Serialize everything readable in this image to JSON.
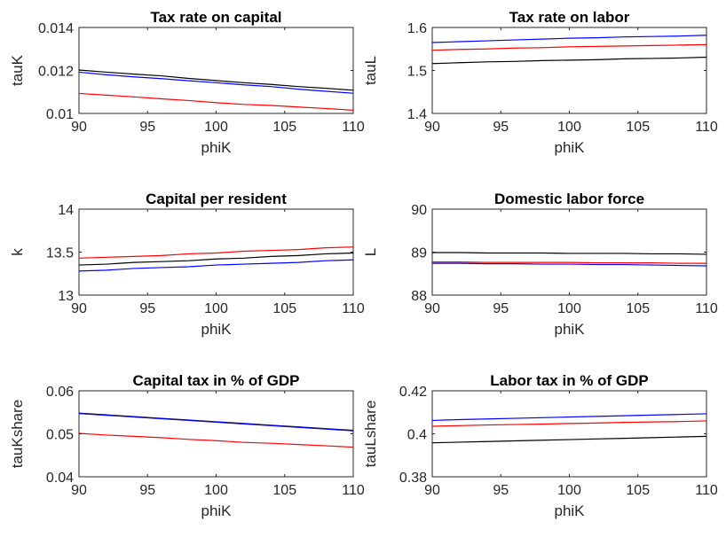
{
  "figure": {
    "colors": {
      "black": "#000000",
      "blue": "#0000ff",
      "red": "#ff0000",
      "axis": "#262626"
    }
  },
  "chart_data": [
    {
      "type": "line",
      "title": "Tax rate on capital",
      "xlabel": "phiK",
      "ylabel": "tauK",
      "xlim": [
        90,
        110
      ],
      "ylim": [
        0.01,
        0.014
      ],
      "xticks": [
        90,
        95,
        100,
        105,
        110
      ],
      "yticks": [
        0.01,
        0.012,
        0.014
      ],
      "xtick_labels": [
        "90",
        "95",
        "100",
        "105",
        "110"
      ],
      "ytick_labels": [
        "0.01",
        "0.012",
        "0.014"
      ],
      "grid": false,
      "x": [
        90,
        92,
        94,
        96,
        98,
        100,
        102,
        104,
        106,
        108,
        110
      ],
      "series": [
        {
          "color": "#000000",
          "values": [
            0.01202,
            0.01192,
            0.01183,
            0.01175,
            0.01163,
            0.01153,
            0.01143,
            0.01135,
            0.01125,
            0.01117,
            0.01108
          ]
        },
        {
          "color": "#0000ff",
          "values": [
            0.01192,
            0.0118,
            0.0117,
            0.01162,
            0.01152,
            0.01143,
            0.01133,
            0.01125,
            0.01113,
            0.01103,
            0.01094
          ]
        },
        {
          "color": "#ff0000",
          "values": [
            0.01093,
            0.01085,
            0.01077,
            0.01068,
            0.0106,
            0.0105,
            0.01042,
            0.01037,
            0.0103,
            0.01023,
            0.01015
          ]
        }
      ]
    },
    {
      "type": "line",
      "title": "Tax rate on labor",
      "xlabel": "phiK",
      "ylabel": "tauL",
      "xlim": [
        90,
        110
      ],
      "ylim": [
        1.4,
        1.6
      ],
      "xticks": [
        90,
        95,
        100,
        105,
        110
      ],
      "yticks": [
        1.4,
        1.5,
        1.6
      ],
      "xtick_labels": [
        "90",
        "95",
        "100",
        "105",
        "110"
      ],
      "ytick_labels": [
        "1.4",
        "1.5",
        "1.6"
      ],
      "grid": false,
      "x": [
        90,
        92,
        94,
        96,
        98,
        100,
        102,
        104,
        106,
        108,
        110
      ],
      "series": [
        {
          "color": "#0000ff",
          "values": [
            1.565,
            1.567,
            1.569,
            1.571,
            1.573,
            1.575,
            1.576,
            1.578,
            1.579,
            1.58,
            1.582
          ]
        },
        {
          "color": "#ff0000",
          "values": [
            1.547,
            1.549,
            1.55,
            1.552,
            1.553,
            1.555,
            1.556,
            1.557,
            1.558,
            1.559,
            1.56
          ]
        },
        {
          "color": "#000000",
          "values": [
            1.516,
            1.518,
            1.52,
            1.521,
            1.523,
            1.524,
            1.525,
            1.527,
            1.528,
            1.529,
            1.531
          ]
        }
      ]
    },
    {
      "type": "line",
      "title": "Capital per resident",
      "xlabel": "phiK",
      "ylabel": "k",
      "xlim": [
        90,
        110
      ],
      "ylim": [
        13,
        14
      ],
      "xticks": [
        90,
        95,
        100,
        105,
        110
      ],
      "yticks": [
        13,
        13.5,
        14
      ],
      "xtick_labels": [
        "90",
        "95",
        "100",
        "105",
        "110"
      ],
      "ytick_labels": [
        "13",
        "13.5",
        "14"
      ],
      "grid": false,
      "x": [
        90,
        92,
        94,
        96,
        98,
        100,
        102,
        104,
        106,
        108,
        110
      ],
      "series": [
        {
          "color": "#ff0000",
          "values": [
            13.43,
            13.44,
            13.45,
            13.46,
            13.48,
            13.49,
            13.51,
            13.52,
            13.53,
            13.55,
            13.56
          ]
        },
        {
          "color": "#000000",
          "values": [
            13.35,
            13.36,
            13.38,
            13.39,
            13.4,
            13.42,
            13.43,
            13.45,
            13.46,
            13.48,
            13.49
          ]
        },
        {
          "color": "#0000ff",
          "values": [
            13.28,
            13.29,
            13.31,
            13.32,
            13.33,
            13.35,
            13.36,
            13.37,
            13.38,
            13.4,
            13.41
          ]
        }
      ]
    },
    {
      "type": "line",
      "title": "Domestic labor force",
      "xlabel": "phiK",
      "ylabel": "L",
      "xlim": [
        90,
        110
      ],
      "ylim": [
        88,
        90
      ],
      "xticks": [
        90,
        95,
        100,
        105,
        110
      ],
      "yticks": [
        88,
        89,
        90
      ],
      "xtick_labels": [
        "90",
        "95",
        "100",
        "105",
        "110"
      ],
      "ytick_labels": [
        "88",
        "89",
        "90"
      ],
      "grid": false,
      "x": [
        90,
        92,
        94,
        96,
        98,
        100,
        102,
        104,
        106,
        108,
        110
      ],
      "series": [
        {
          "color": "#000000",
          "values": [
            88.99,
            88.99,
            88.98,
            88.98,
            88.98,
            88.97,
            88.97,
            88.97,
            88.96,
            88.96,
            88.95
          ]
        },
        {
          "color": "#ff0000",
          "values": [
            88.77,
            88.77,
            88.76,
            88.76,
            88.76,
            88.76,
            88.75,
            88.75,
            88.75,
            88.74,
            88.74
          ]
        },
        {
          "color": "#0000ff",
          "values": [
            88.74,
            88.74,
            88.73,
            88.73,
            88.72,
            88.72,
            88.71,
            88.71,
            88.7,
            88.69,
            88.68
          ]
        }
      ]
    },
    {
      "type": "line",
      "title": "Capital tax in % of GDP",
      "xlabel": "phiK",
      "ylabel": "tauKshare",
      "xlim": [
        90,
        110
      ],
      "ylim": [
        0.04,
        0.06
      ],
      "xticks": [
        90,
        95,
        100,
        105,
        110
      ],
      "yticks": [
        0.04,
        0.05,
        0.06
      ],
      "xtick_labels": [
        "90",
        "95",
        "100",
        "105",
        "110"
      ],
      "ytick_labels": [
        "0.04",
        "0.05",
        "0.06"
      ],
      "grid": false,
      "x": [
        90,
        92,
        94,
        96,
        98,
        100,
        102,
        104,
        106,
        108,
        110
      ],
      "series": [
        {
          "color": "#000000",
          "values": [
            0.0548,
            0.0544,
            0.054,
            0.0536,
            0.0532,
            0.0528,
            0.0524,
            0.052,
            0.0516,
            0.0512,
            0.0508
          ]
        },
        {
          "color": "#0000ff",
          "values": [
            0.0547,
            0.0543,
            0.0539,
            0.0535,
            0.0531,
            0.0527,
            0.0523,
            0.0519,
            0.0515,
            0.0511,
            0.0507
          ]
        },
        {
          "color": "#ff0000",
          "values": [
            0.0501,
            0.0497,
            0.0494,
            0.0491,
            0.0487,
            0.0484,
            0.048,
            0.0478,
            0.0475,
            0.0472,
            0.0469
          ]
        }
      ]
    },
    {
      "type": "line",
      "title": "Labor tax in % of GDP",
      "xlabel": "phiK",
      "ylabel": "tauLshare",
      "xlim": [
        90,
        110
      ],
      "ylim": [
        0.38,
        0.42
      ],
      "xticks": [
        90,
        95,
        100,
        105,
        110
      ],
      "yticks": [
        0.38,
        0.4,
        0.42
      ],
      "xtick_labels": [
        "90",
        "95",
        "100",
        "105",
        "110"
      ],
      "ytick_labels": [
        "0.38",
        "0.4",
        "0.42"
      ],
      "grid": false,
      "x": [
        90,
        92,
        94,
        96,
        98,
        100,
        102,
        104,
        106,
        108,
        110
      ],
      "series": [
        {
          "color": "#0000ff",
          "values": [
            0.4062,
            0.4066,
            0.4069,
            0.4072,
            0.4075,
            0.4078,
            0.4081,
            0.4084,
            0.4087,
            0.409,
            0.4093
          ]
        },
        {
          "color": "#ff0000",
          "values": [
            0.4035,
            0.4038,
            0.4041,
            0.4043,
            0.4045,
            0.4048,
            0.405,
            0.4053,
            0.4055,
            0.4057,
            0.406
          ]
        },
        {
          "color": "#000000",
          "values": [
            0.3958,
            0.3961,
            0.3964,
            0.3967,
            0.397,
            0.3973,
            0.3976,
            0.3979,
            0.3982,
            0.3985,
            0.3988
          ]
        }
      ]
    }
  ]
}
